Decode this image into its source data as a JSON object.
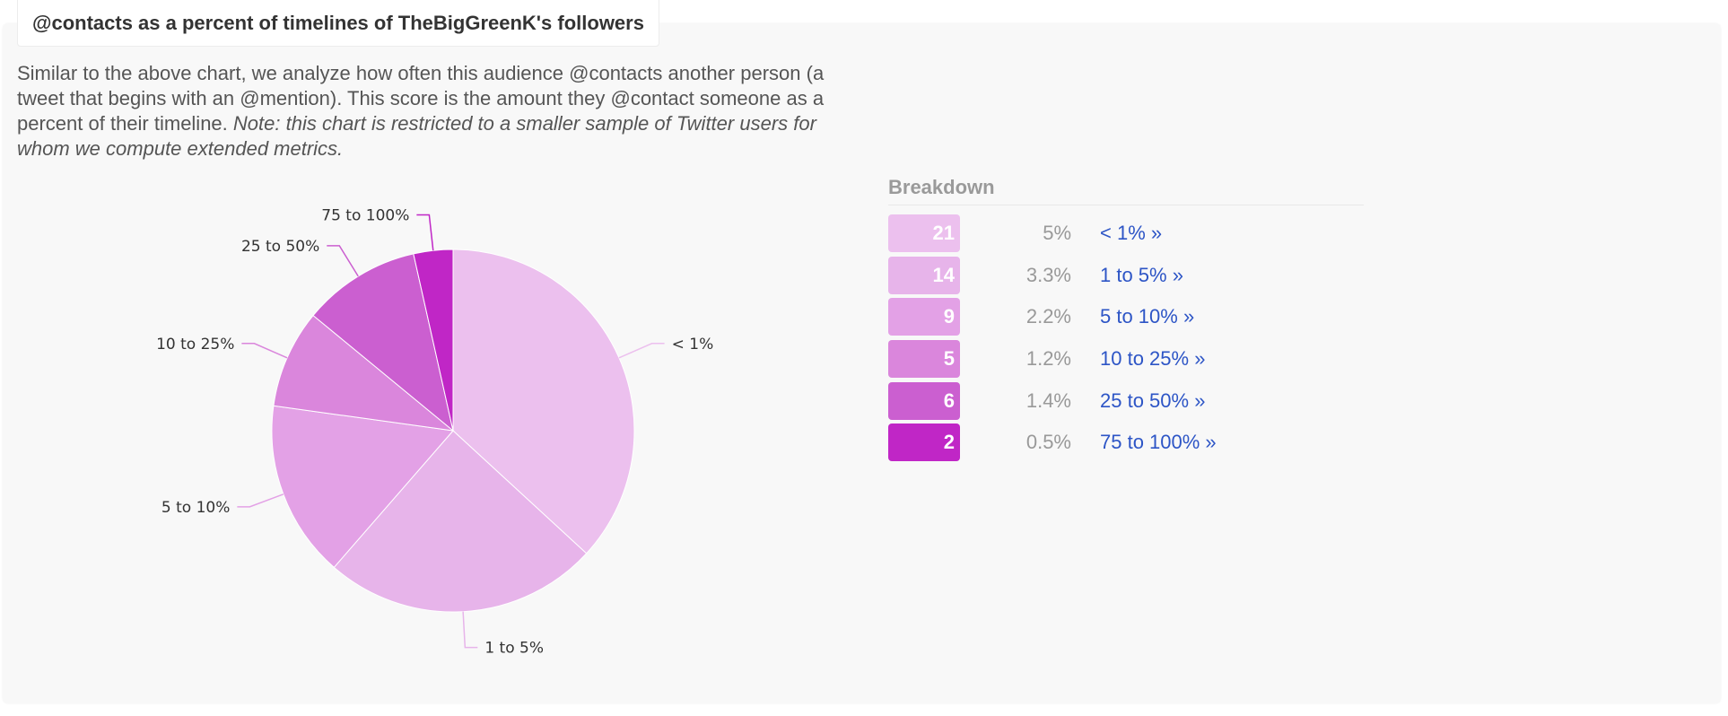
{
  "title": "@contacts as a percent of timelines of TheBigGreenK's followers",
  "description": {
    "text": "Similar to the above chart, we analyze how often this audience @contacts another person (a tweet that begins with an @mention). This score is the amount they @contact someone as a percent of their timeline.",
    "note": "Note: this chart is restricted to a smaller sample of Twitter users for whom we compute extended metrics."
  },
  "chart_data": {
    "type": "pie",
    "categories": [
      "< 1%",
      "1 to 5%",
      "5 to 10%",
      "10 to 25%",
      "25 to 50%",
      "75 to 100%"
    ],
    "values": [
      21,
      14,
      9,
      5,
      6,
      2
    ],
    "colors": [
      "#ecc0ee",
      "#e7b4ea",
      "#e3a1e6",
      "#da86dc",
      "#cb5fd0",
      "#c026c6"
    ]
  },
  "breakdown": {
    "title": "Breakdown",
    "rows": [
      {
        "count": "21",
        "percent": "5%",
        "label": "< 1% »"
      },
      {
        "count": "14",
        "percent": "3.3%",
        "label": "1 to 5% »"
      },
      {
        "count": "9",
        "percent": "2.2%",
        "label": "5 to 10% »"
      },
      {
        "count": "5",
        "percent": "1.2%",
        "label": "10 to 25% »"
      },
      {
        "count": "6",
        "percent": "1.4%",
        "label": "25 to 50% »"
      },
      {
        "count": "2",
        "percent": "0.5%",
        "label": "75 to 100% »"
      }
    ]
  }
}
